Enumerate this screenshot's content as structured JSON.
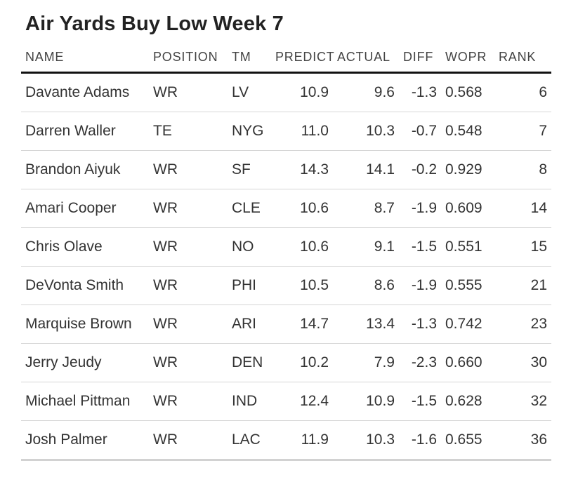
{
  "chart_data": {
    "type": "table",
    "title": "Air Yards Buy Low Week 7",
    "columns": [
      "NAME",
      "POSITION",
      "TM",
      "PREDICT",
      "ACTUAL",
      "DIFF",
      "WOPR",
      "RANK"
    ],
    "rows": [
      [
        "Davante Adams",
        "WR",
        "LV",
        "10.9",
        "9.6",
        "-1.3",
        "0.568",
        "6"
      ],
      [
        "Darren Waller",
        "TE",
        "NYG",
        "11.0",
        "10.3",
        "-0.7",
        "0.548",
        "7"
      ],
      [
        "Brandon Aiyuk",
        "WR",
        "SF",
        "14.3",
        "14.1",
        "-0.2",
        "0.929",
        "8"
      ],
      [
        "Amari Cooper",
        "WR",
        "CLE",
        "10.6",
        "8.7",
        "-1.9",
        "0.609",
        "14"
      ],
      [
        "Chris Olave",
        "WR",
        "NO",
        "10.6",
        "9.1",
        "-1.5",
        "0.551",
        "15"
      ],
      [
        "DeVonta Smith",
        "WR",
        "PHI",
        "10.5",
        "8.6",
        "-1.9",
        "0.555",
        "21"
      ],
      [
        "Marquise Brown",
        "WR",
        "ARI",
        "14.7",
        "13.4",
        "-1.3",
        "0.742",
        "23"
      ],
      [
        "Jerry Jeudy",
        "WR",
        "DEN",
        "10.2",
        "7.9",
        "-2.3",
        "0.660",
        "30"
      ],
      [
        "Michael Pittman",
        "WR",
        "IND",
        "12.4",
        "10.9",
        "-1.5",
        "0.628",
        "32"
      ],
      [
        "Josh Palmer",
        "WR",
        "LAC",
        "11.9",
        "10.3",
        "-1.6",
        "0.655",
        "36"
      ]
    ]
  }
}
